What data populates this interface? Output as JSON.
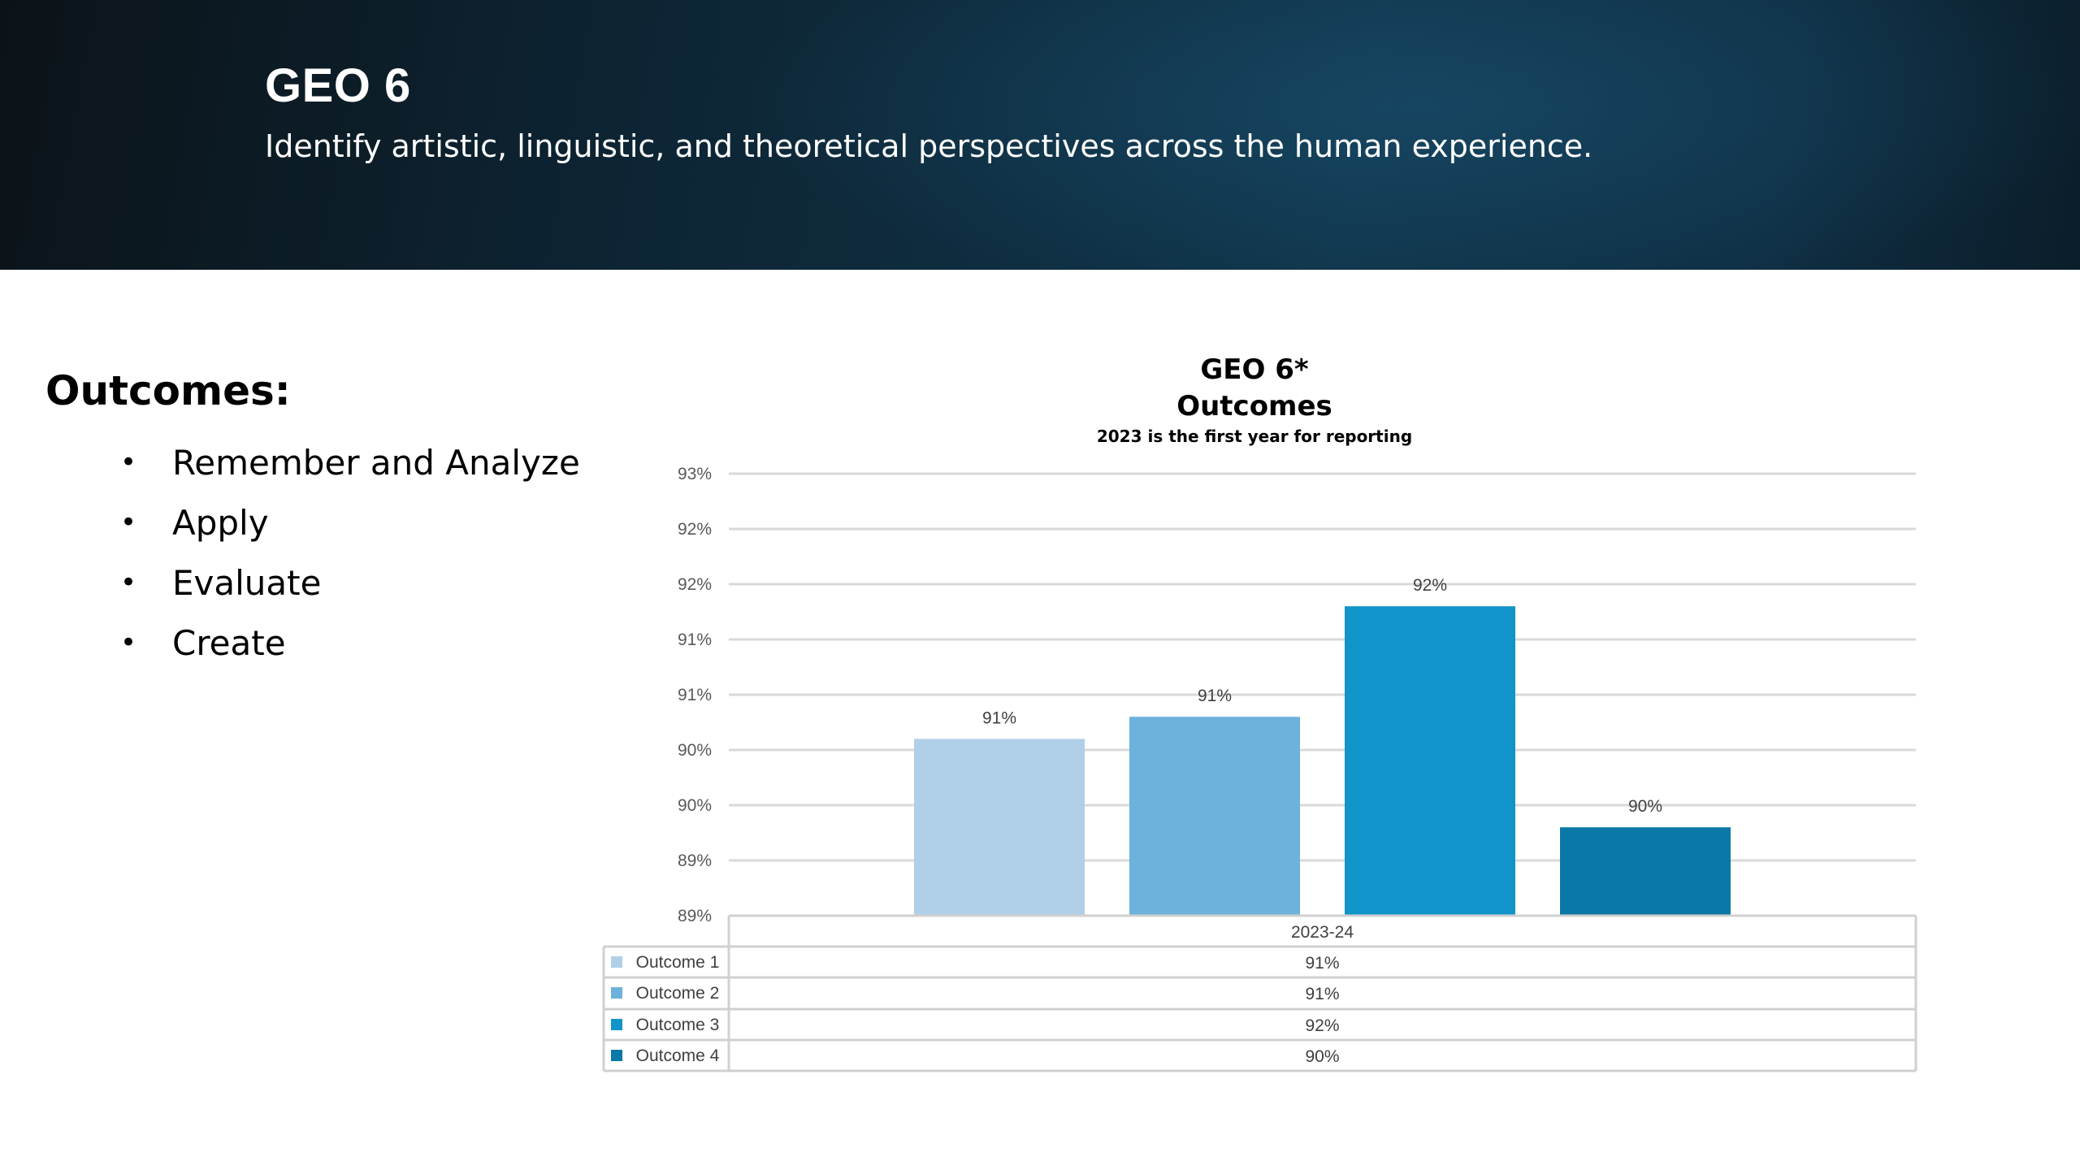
{
  "header": {
    "title": "GEO 6",
    "subtitle": "Identify artistic, linguistic, and theoretical perspectives across the human experience."
  },
  "outcomes": {
    "heading": "Outcomes:",
    "bullet": "•",
    "items": [
      "Remember and Analyze",
      "Apply",
      "Evaluate",
      "Create"
    ]
  },
  "chart_data": {
    "type": "bar",
    "title": "GEO 6*",
    "title2": "Outcomes",
    "subtitle": "2023 is the first year for reporting",
    "xlabel": "",
    "ylabel": "",
    "categories": [
      "2023-24"
    ],
    "series": [
      {
        "name": "Outcome 1",
        "value": 90.6,
        "label": "91%",
        "color": "#b0cfe8"
      },
      {
        "name": "Outcome 2",
        "value": 90.8,
        "label": "91%",
        "color": "#6cb2dc"
      },
      {
        "name": "Outcome 3",
        "value": 91.8,
        "label": "92%",
        "color": "#1194c9"
      },
      {
        "name": "Outcome 4",
        "value": 89.8,
        "label": "90%",
        "color": "#0b79a8"
      }
    ],
    "ylim": [
      89.0,
      93.0
    ],
    "y_ticks": [
      {
        "value": 89.0,
        "label": "89%"
      },
      {
        "value": 89.5,
        "label": "89%"
      },
      {
        "value": 90.0,
        "label": "90%"
      },
      {
        "value": 90.5,
        "label": "90%"
      },
      {
        "value": 91.0,
        "label": "91%"
      },
      {
        "value": 91.5,
        "label": "91%"
      },
      {
        "value": 92.0,
        "label": "92%"
      },
      {
        "value": 92.5,
        "label": "92%"
      },
      {
        "value": 93.0,
        "label": "93%"
      }
    ],
    "grid": true,
    "legend": "data-table",
    "gridline_color": "#d9d9d9"
  }
}
